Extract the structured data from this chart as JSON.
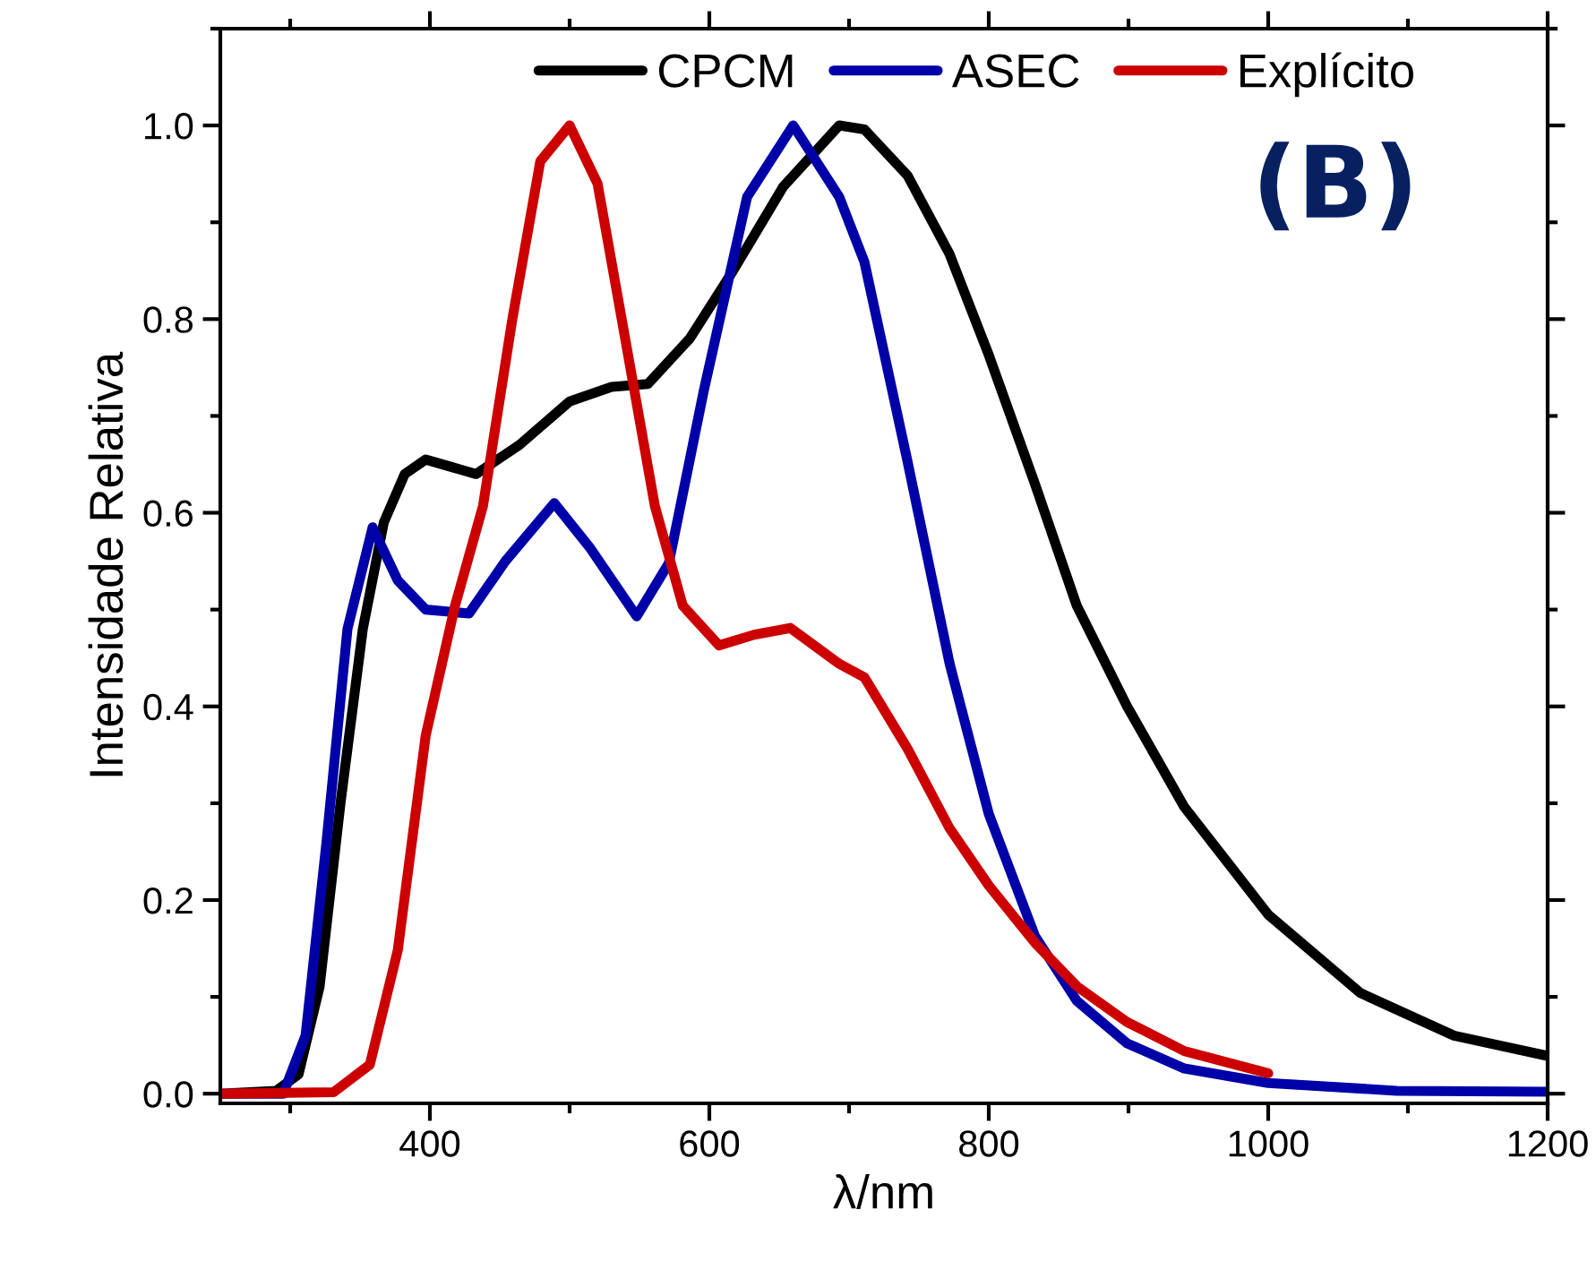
{
  "chart_data": {
    "type": "line",
    "xlabel": "λ/nm",
    "ylabel": "Intensidade Relativa",
    "annotations": [
      "(B)"
    ],
    "xlim": [
      250,
      1200
    ],
    "ylim": [
      -0.01,
      1.1
    ],
    "xticks": [
      400,
      600,
      800,
      1000,
      1200
    ],
    "yticks": [
      {
        "value": 0,
        "label": "0.0"
      },
      {
        "value": 0.2,
        "label": "0.2"
      },
      {
        "value": 0.4,
        "label": "0.4"
      },
      {
        "value": 0.6,
        "label": "0.6"
      },
      {
        "value": 0.8,
        "label": "0.8"
      },
      {
        "value": 1,
        "label": "1.0"
      }
    ],
    "grid": false,
    "legend": "top",
    "marker": "none",
    "line_style": "solid",
    "series": [
      {
        "name": "CPCM",
        "color": "#000000",
        "x": [
          251,
          290,
          306,
          321,
          336,
          352,
          367,
          382,
          397,
          433,
          464,
          500,
          530,
          556,
          586,
          617,
          653,
          693,
          711,
          742,
          772,
          800,
          833,
          863,
          899,
          940,
          1000,
          1066,
          1133,
          1200
        ],
        "values": [
          0,
          0.003,
          0.02,
          0.11,
          0.3,
          0.48,
          0.59,
          0.64,
          0.655,
          0.64,
          0.67,
          0.715,
          0.73,
          0.733,
          0.78,
          0.85,
          0.937,
          1.0,
          0.996,
          0.948,
          0.867,
          0.763,
          0.63,
          0.504,
          0.4,
          0.296,
          0.185,
          0.104,
          0.06,
          0.039
        ]
      },
      {
        "name": "ASEC",
        "color": "#0000a8",
        "x": [
          251,
          295,
          311,
          326,
          341,
          359,
          377,
          397,
          428,
          454,
          489,
          515,
          548,
          571,
          596,
          627,
          660,
          693,
          711,
          742,
          772,
          800,
          833,
          863,
          899,
          940,
          1000,
          1092,
          1200
        ],
        "values": [
          0,
          0,
          0.06,
          0.26,
          0.48,
          0.585,
          0.53,
          0.5,
          0.496,
          0.55,
          0.61,
          0.563,
          0.493,
          0.548,
          0.726,
          0.926,
          1.0,
          0.926,
          0.859,
          0.652,
          0.444,
          0.289,
          0.163,
          0.096,
          0.052,
          0.026,
          0.011,
          0.003,
          0.002
        ]
      },
      {
        "name": "Explícito",
        "color": "#cc0000",
        "x": [
          251,
          331,
          357,
          377,
          397,
          418,
          438,
          459,
          479,
          500,
          520,
          540,
          561,
          581,
          607,
          632,
          658,
          693,
          711,
          742,
          772,
          800,
          833,
          863,
          899,
          940,
          1000
        ],
        "values": [
          0,
          0.0015,
          0.03,
          0.148,
          0.37,
          0.504,
          0.607,
          0.8,
          0.963,
          1.0,
          0.94,
          0.778,
          0.607,
          0.504,
          0.463,
          0.474,
          0.481,
          0.444,
          0.43,
          0.356,
          0.274,
          0.215,
          0.156,
          0.111,
          0.074,
          0.044,
          0.021
        ]
      }
    ]
  }
}
